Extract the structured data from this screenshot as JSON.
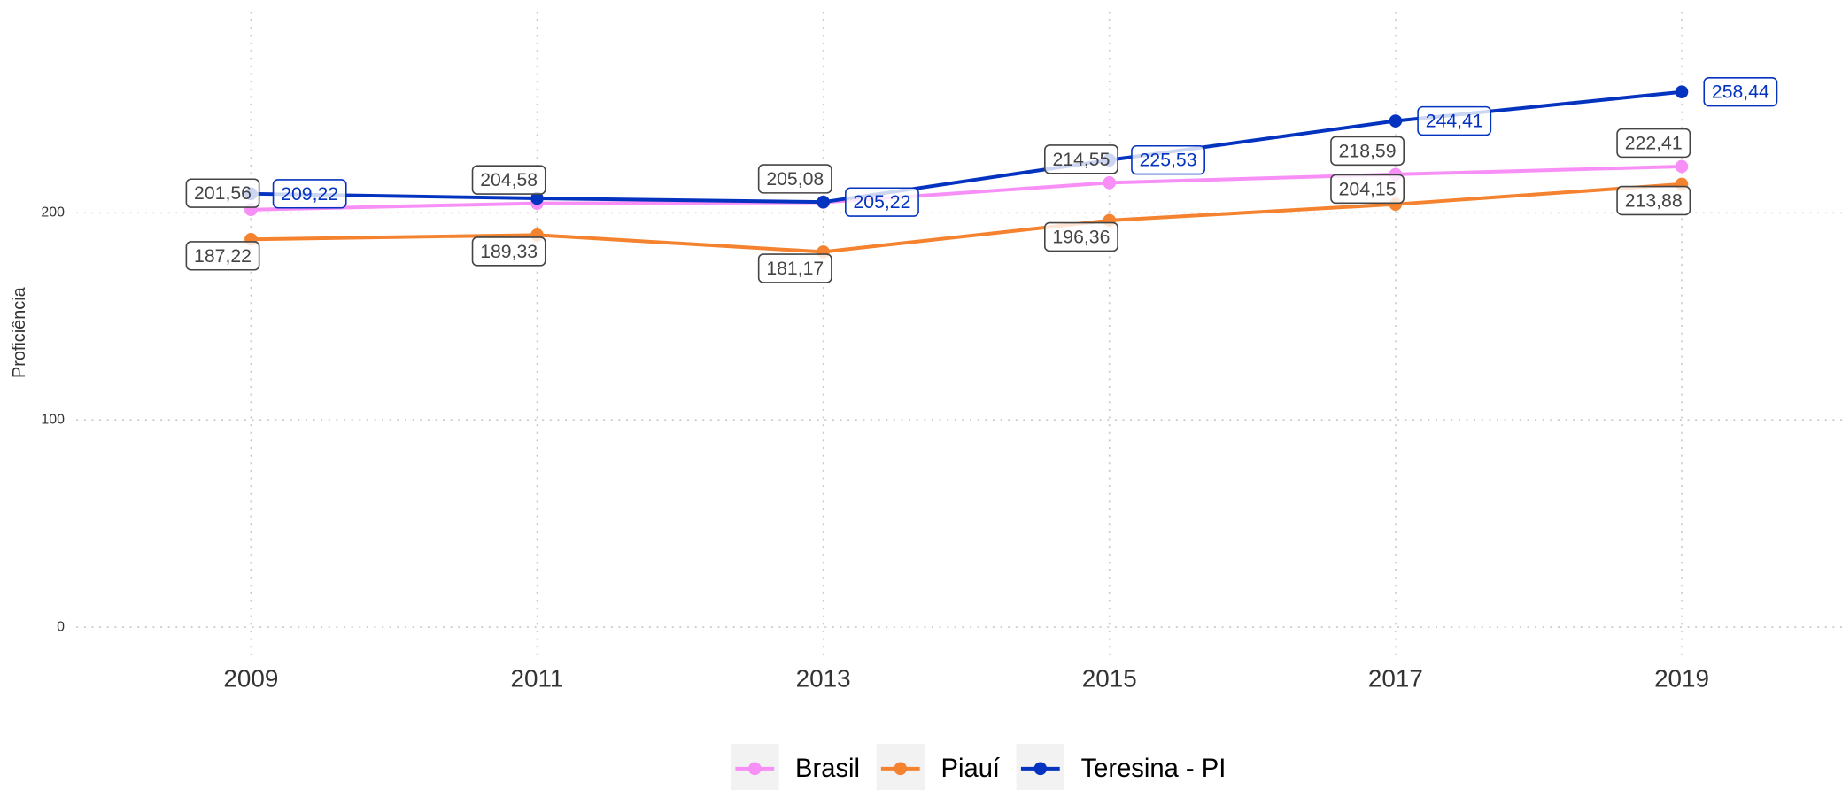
{
  "chart_data": {
    "type": "line",
    "y_label": "Proficiência",
    "x": [
      2009,
      2011,
      2013,
      2015,
      2017,
      2019
    ],
    "xlim": [
      2007.78,
      2020.12
    ],
    "xticks": [
      2009,
      2011,
      2013,
      2015,
      2017,
      2019
    ],
    "ylim": [
      -15,
      297
    ],
    "yticks": [
      0,
      100,
      200
    ],
    "grid": true,
    "legend": "bottom",
    "series": [
      {
        "name": "Brasil",
        "color": "#f78ff7",
        "values": [
          201.56,
          204.58,
          205.08,
          214.55,
          218.59,
          222.41
        ],
        "value_labels": [
          "201,56",
          "204,58",
          "205,08",
          "214,55",
          "218,59",
          "222,41"
        ]
      },
      {
        "name": "Piauí",
        "color": "#f5822f",
        "values": [
          187.22,
          189.33,
          181.17,
          196.36,
          204.15,
          213.88
        ],
        "value_labels": [
          "187,22",
          "189,33",
          "181,17",
          "196,36",
          "204,15",
          "213,88"
        ]
      },
      {
        "name": "Teresina - PI",
        "color": "#0433c0",
        "values": [
          209.22,
          207,
          205.22,
          225.53,
          244.41,
          258.44
        ],
        "value_labels": [
          "209,22",
          null,
          "205,22",
          "225,53",
          "244,41",
          "258,44"
        ]
      }
    ]
  }
}
